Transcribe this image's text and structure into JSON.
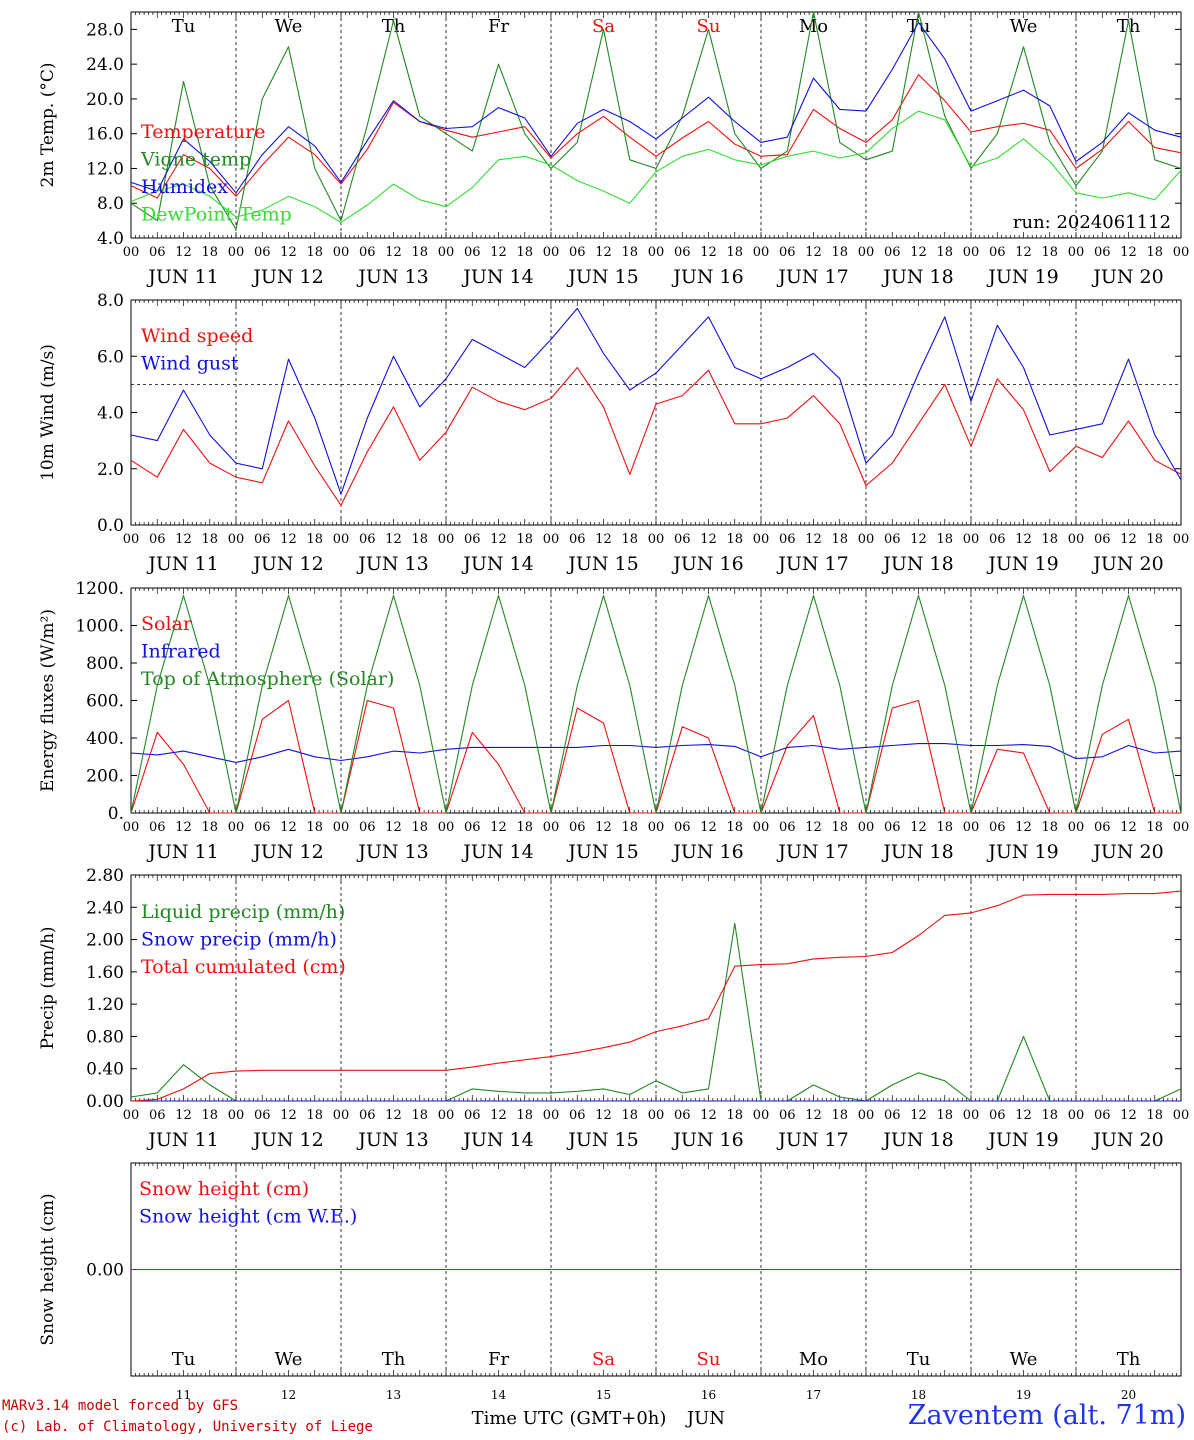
{
  "footer": {
    "credit_line1": "MARv3.14 model forced by GFS",
    "credit_line2": "(c) Lab. of Climatology, University of Liege",
    "xlabel": "Time UTC (GMT+0h)",
    "month": "JUN",
    "station": "Zaventem (alt. 71m)"
  },
  "days": [
    {
      "dow": "Tu",
      "date": "JUN 11",
      "num": "11",
      "weekend": false
    },
    {
      "dow": "We",
      "date": "JUN 12",
      "num": "12",
      "weekend": false
    },
    {
      "dow": "Th",
      "date": "JUN 13",
      "num": "13",
      "weekend": false
    },
    {
      "dow": "Fr",
      "date": "JUN 14",
      "num": "14",
      "weekend": false
    },
    {
      "dow": "Sa",
      "date": "JUN 15",
      "num": "15",
      "weekend": true
    },
    {
      "dow": "Su",
      "date": "JUN 16",
      "num": "16",
      "weekend": true
    },
    {
      "dow": "Mo",
      "date": "JUN 17",
      "num": "17",
      "weekend": false
    },
    {
      "dow": "Tu",
      "date": "JUN 18",
      "num": "18",
      "weekend": false
    },
    {
      "dow": "We",
      "date": "JUN 19",
      "num": "19",
      "weekend": false
    },
    {
      "dow": "Th",
      "date": "JUN 20",
      "num": "20",
      "weekend": false
    }
  ],
  "hour_labels": [
    "00",
    "06",
    "12",
    "18"
  ],
  "colors": {
    "red": "#ee1111",
    "green": "#228822",
    "blue": "#1111dd",
    "lightgreen": "#33dd33",
    "purple": "#882299",
    "weekend": "#ee1111",
    "station": "#2233ee",
    "credit": "#cc0000"
  },
  "chart_data": [
    {
      "type": "line",
      "ylabel": "2m Temp. (°C)",
      "ylim": [
        4,
        30
      ],
      "yticks": [
        "4.0",
        "8.0",
        "12.0",
        "16.0",
        "20.0",
        "24.0",
        "28.0"
      ],
      "annotation": "run: 2024061112",
      "step_hours": 6,
      "series": [
        {
          "name": "Temperature",
          "color": "red",
          "values": [
            10,
            8.6,
            13.6,
            12,
            8.8,
            12.4,
            15.6,
            13.6,
            10.2,
            14.2,
            19.6,
            17.4,
            16.4,
            15.6,
            16.2,
            16.8,
            13.2,
            16,
            18,
            15.6,
            13.4,
            15.5,
            17.4,
            14.8,
            13.4,
            13.6,
            18.8,
            16.6,
            15,
            17.6,
            22.8,
            19.8,
            16.2,
            16.8,
            17.2,
            16.4,
            12,
            14.2,
            17.4,
            14.4,
            13.8
          ]
        },
        {
          "name": "Vigne temp",
          "color": "green",
          "values": [
            8,
            6,
            22,
            10,
            5,
            20,
            26,
            12,
            6,
            17,
            29,
            18,
            16,
            14,
            24,
            16,
            12,
            15,
            28,
            13,
            12,
            18,
            28,
            16,
            12,
            14,
            30,
            15,
            13,
            14,
            30,
            18,
            12,
            16,
            26,
            15,
            10,
            14,
            29,
            13,
            12
          ]
        },
        {
          "name": "Humidex",
          "color": "blue",
          "values": [
            10.4,
            9.4,
            15.4,
            12.8,
            9.2,
            13.6,
            16.8,
            14.6,
            10.4,
            15.2,
            19.8,
            17.4,
            16.6,
            16.8,
            19,
            17.8,
            13.4,
            17.2,
            18.8,
            17.4,
            15.4,
            17.8,
            20.2,
            17.4,
            15,
            15.6,
            22.4,
            18.8,
            18.6,
            23.4,
            28.8,
            24.6,
            18.6,
            19.8,
            21,
            19.2,
            12.8,
            15,
            18.4,
            16.4,
            15.6
          ]
        },
        {
          "name": "DewPoint Temp",
          "color": "lightgreen",
          "values": [
            8.2,
            9.4,
            10.2,
            8.8,
            6.4,
            7.2,
            8.8,
            7.6,
            5.8,
            7.8,
            10.2,
            8.4,
            7.6,
            9.8,
            13,
            13.4,
            12.4,
            10.6,
            9.4,
            8,
            11.6,
            13.4,
            14.2,
            13,
            12.4,
            13.4,
            14,
            13.2,
            13.8,
            16.6,
            18.6,
            17.6,
            12.2,
            13.2,
            15.4,
            12.8,
            9.2,
            8.6,
            9.2,
            8.4,
            11.8
          ]
        }
      ]
    },
    {
      "type": "line",
      "ylabel": "10m Wind (m/s)",
      "ylim": [
        0,
        8
      ],
      "yticks": [
        "0.0",
        "2.0",
        "4.0",
        "6.0",
        "8.0"
      ],
      "reference_line": 5,
      "step_hours": 6,
      "series": [
        {
          "name": "Wind speed",
          "color": "red",
          "values": [
            2.3,
            1.7,
            3.4,
            2.2,
            1.7,
            1.5,
            3.7,
            2.1,
            0.7,
            2.6,
            4.2,
            2.3,
            3.3,
            4.9,
            4.4,
            4.1,
            4.5,
            5.6,
            4.2,
            1.8,
            4.3,
            4.6,
            5.5,
            3.6,
            3.6,
            3.8,
            4.6,
            3.6,
            1.4,
            2.2,
            3.6,
            5,
            2.8,
            5.2,
            4.1,
            1.9,
            2.8,
            2.4,
            3.7,
            2.3,
            1.8
          ]
        },
        {
          "name": "Wind gust",
          "color": "blue",
          "values": [
            3.2,
            3,
            4.8,
            3.2,
            2.2,
            2,
            5.9,
            3.8,
            1.1,
            3.8,
            6,
            4.2,
            5.2,
            6.6,
            6.1,
            5.6,
            6.6,
            7.7,
            6.1,
            4.8,
            5.4,
            6.4,
            7.4,
            5.6,
            5.2,
            5.6,
            6.1,
            5.2,
            2.2,
            3.2,
            5.4,
            7.4,
            4.4,
            7.1,
            5.6,
            3.2,
            3.4,
            3.6,
            5.9,
            3.2,
            1.6
          ]
        }
      ]
    },
    {
      "type": "line",
      "ylabel": "Energy fluxes (W/m²)",
      "ylim": [
        0,
        1200
      ],
      "yticks": [
        "0.",
        "200.",
        "400.",
        "600.",
        "800.",
        "1000.",
        "1200."
      ],
      "step_hours": 6,
      "series": [
        {
          "name": "Solar",
          "color": "red",
          "values": [
            0,
            430,
            260,
            0,
            0,
            500,
            600,
            0,
            0,
            600,
            560,
            0,
            0,
            430,
            260,
            0,
            0,
            560,
            480,
            0,
            0,
            460,
            400,
            0,
            0,
            360,
            520,
            0,
            0,
            560,
            600,
            0,
            0,
            340,
            320,
            0,
            0,
            420,
            500,
            0,
            0
          ]
        },
        {
          "name": "Infrared",
          "color": "blue",
          "values": [
            320,
            310,
            330,
            300,
            270,
            300,
            340,
            300,
            280,
            300,
            330,
            320,
            340,
            350,
            350,
            350,
            350,
            350,
            360,
            360,
            350,
            360,
            365,
            355,
            300,
            350,
            360,
            340,
            350,
            360,
            370,
            370,
            360,
            360,
            365,
            355,
            290,
            300,
            360,
            320,
            330
          ]
        },
        {
          "name": "Top of Atmosphere (Solar)",
          "color": "green",
          "values": [
            0,
            680,
            1160,
            680,
            0,
            680,
            1160,
            680,
            0,
            680,
            1160,
            680,
            0,
            680,
            1160,
            680,
            0,
            680,
            1160,
            680,
            0,
            680,
            1160,
            680,
            0,
            680,
            1160,
            680,
            0,
            680,
            1160,
            680,
            0,
            680,
            1160,
            680,
            0,
            680,
            1160,
            680,
            0
          ]
        }
      ]
    },
    {
      "type": "line",
      "ylabel": "Precip (mm/h)",
      "ylim": [
        0,
        2.8
      ],
      "yticks": [
        "0.00",
        "0.40",
        "0.80",
        "1.20",
        "1.60",
        "2.00",
        "2.40",
        "2.80"
      ],
      "step_hours": 6,
      "series": [
        {
          "name": "Liquid precip (mm/h)",
          "color": "green",
          "values": [
            0.05,
            0.1,
            0.45,
            0.2,
            0,
            0,
            0,
            0,
            0,
            0,
            0,
            0,
            0,
            0.15,
            0.12,
            0.1,
            0.1,
            0.12,
            0.15,
            0.08,
            0.25,
            0.1,
            0.15,
            2.2,
            0,
            0,
            0.2,
            0.05,
            0,
            0.2,
            0.35,
            0.25,
            0,
            0,
            0.8,
            0,
            0,
            0,
            0,
            0,
            0.15
          ]
        },
        {
          "name": "Snow precip (mm/h)",
          "color": "blue",
          "values": [
            0,
            0,
            0,
            0,
            0,
            0,
            0,
            0,
            0,
            0,
            0,
            0,
            0,
            0,
            0,
            0,
            0,
            0,
            0,
            0,
            0,
            0,
            0,
            0,
            0,
            0,
            0,
            0,
            0,
            0,
            0,
            0,
            0,
            0,
            0,
            0,
            0,
            0,
            0,
            0,
            0
          ]
        },
        {
          "name": "Total cumulated (cm)",
          "color": "red",
          "values": [
            0,
            0.02,
            0.15,
            0.34,
            0.37,
            0.38,
            0.38,
            0.38,
            0.38,
            0.38,
            0.38,
            0.38,
            0.38,
            0.42,
            0.47,
            0.51,
            0.55,
            0.6,
            0.66,
            0.73,
            0.86,
            0.93,
            1.02,
            1.67,
            1.69,
            1.7,
            1.76,
            1.78,
            1.79,
            1.84,
            2.05,
            2.3,
            2.33,
            2.42,
            2.55,
            2.56,
            2.56,
            2.56,
            2.57,
            2.57,
            2.6
          ]
        }
      ]
    },
    {
      "type": "line",
      "ylabel": "Snow height (cm)",
      "ylim": [
        -1,
        1
      ],
      "yticks": [
        "0.00"
      ],
      "step_hours": 6,
      "series": [
        {
          "name": "Snow height (cm)",
          "color": "red",
          "values": [
            0,
            0,
            0,
            0,
            0,
            0,
            0,
            0,
            0,
            0,
            0,
            0,
            0,
            0,
            0,
            0,
            0,
            0,
            0,
            0,
            0,
            0,
            0,
            0,
            0,
            0,
            0,
            0,
            0,
            0,
            0,
            0,
            0,
            0,
            0,
            0,
            0,
            0,
            0,
            0,
            0
          ]
        },
        {
          "name": "Snow height (cm W.E.)",
          "color": "blue",
          "values": [
            0,
            0,
            0,
            0,
            0,
            0,
            0,
            0,
            0,
            0,
            0,
            0,
            0,
            0,
            0,
            0,
            0,
            0,
            0,
            0,
            0,
            0,
            0,
            0,
            0,
            0,
            0,
            0,
            0,
            0,
            0,
            0,
            0,
            0,
            0,
            0,
            0,
            0,
            0,
            0,
            0
          ]
        }
      ]
    }
  ]
}
